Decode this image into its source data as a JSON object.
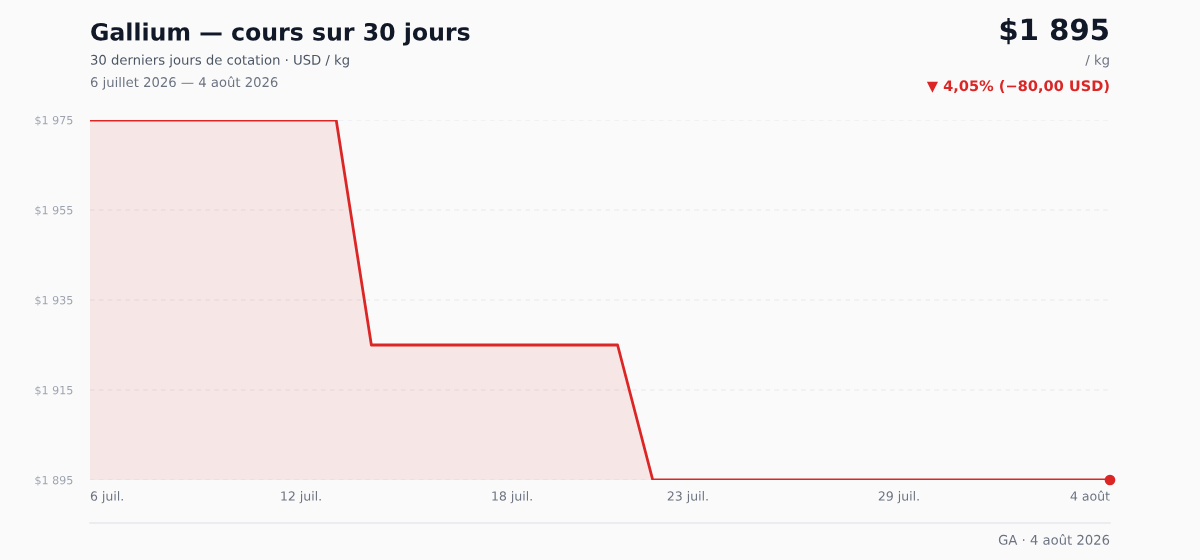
{
  "chart_data": {
    "type": "area",
    "title": "Gallium — cours sur 30 jours",
    "subtitle": "30 derniers jours de cotation · USD / kg",
    "annotations": [
      "6 juillet 2026 — 4 août 2026",
      "$1 895",
      "/ kg",
      "▼ 4,05% (−80,00 USD)",
      "GA · 4 août 2026"
    ],
    "x": [
      "2026-07-06",
      "2026-07-07",
      "2026-07-08",
      "2026-07-09",
      "2026-07-10",
      "2026-07-11",
      "2026-07-12",
      "2026-07-13",
      "2026-07-14",
      "2026-07-15",
      "2026-07-16",
      "2026-07-17",
      "2026-07-18",
      "2026-07-19",
      "2026-07-20",
      "2026-07-21",
      "2026-07-22",
      "2026-07-23",
      "2026-07-24",
      "2026-07-25",
      "2026-07-26",
      "2026-07-27",
      "2026-07-28",
      "2026-07-29",
      "2026-07-30",
      "2026-07-31",
      "2026-08-01",
      "2026-08-02",
      "2026-08-03",
      "2026-08-04"
    ],
    "series": [
      {
        "color": "#dc2626",
        "values": [
          1975,
          1975,
          1975,
          1975,
          1975,
          1975,
          1975,
          1975,
          1925,
          1925,
          1925,
          1925,
          1925,
          1925,
          1925,
          1925,
          1895,
          1895,
          1895,
          1895,
          1895,
          1895,
          1895,
          1895,
          1895,
          1895,
          1895,
          1895,
          1895,
          1895
        ]
      }
    ],
    "xlim": [
      "2026-07-06",
      "2026-08-04"
    ],
    "xticks": [
      {
        "value": "2026-07-06",
        "label": "6 juil."
      },
      {
        "value": "2026-07-12",
        "label": "12 juil."
      },
      {
        "value": "2026-07-18",
        "label": "18 juil."
      },
      {
        "value": "2026-07-23",
        "label": "23 juil."
      },
      {
        "value": "2026-07-29",
        "label": "29 juil."
      },
      {
        "value": "2026-08-04",
        "label": "4 août"
      }
    ],
    "ylim": [
      1895,
      1975
    ],
    "yticks": [
      {
        "value": 1895,
        "label": "$1 895"
      },
      {
        "value": 1915,
        "label": "$1 915"
      },
      {
        "value": 1935,
        "label": "$1 935"
      },
      {
        "value": 1955,
        "label": "$1 955"
      },
      {
        "value": 1975,
        "label": "$1 975"
      }
    ],
    "grid": "y"
  }
}
